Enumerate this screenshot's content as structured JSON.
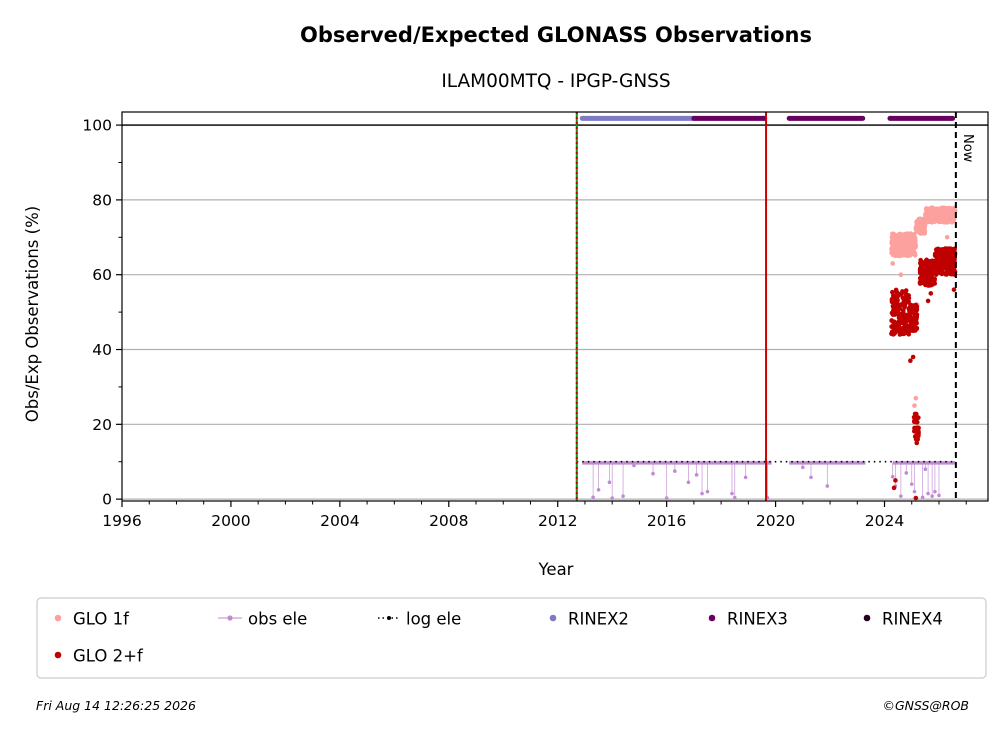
{
  "chart_data": {
    "type": "scatter",
    "title": "Observed/Expected GLONASS Observations",
    "subtitle": "ILAM00MTQ - IPGP-GNSS",
    "xlabel": "Year",
    "ylabel": "Obs/Exp Observations (%)",
    "xlim": [
      1996,
      2027.8
    ],
    "ylim": [
      -0.5,
      103.5
    ],
    "xticks": [
      "1996",
      "2000",
      "2004",
      "2008",
      "2012",
      "2016",
      "2020",
      "2024"
    ],
    "yticks": [
      "0",
      "20",
      "40",
      "60",
      "80",
      "100"
    ],
    "grid": "horizontal",
    "reference_line_y": 100,
    "vertical_lines": [
      {
        "x": 2012.7,
        "color": "#1a8a1a",
        "style": "solid"
      },
      {
        "x": 2012.7,
        "color": "#cc0000",
        "style": "dotted"
      },
      {
        "x": 2019.65,
        "color": "#cc0000",
        "style": "solid"
      },
      {
        "x": 2026.62,
        "color": "#000000",
        "style": "dashed",
        "label": "Now"
      }
    ],
    "rinex_bands": [
      {
        "name": "RINEX2",
        "y": 101.8,
        "x_ranges": [
          [
            2012.9,
            2017.0
          ]
        ]
      },
      {
        "name": "RINEX3",
        "y": 101.8,
        "x_ranges": [
          [
            2017.0,
            2019.6
          ],
          [
            2020.5,
            2023.2
          ],
          [
            2024.2,
            2026.5
          ]
        ]
      }
    ],
    "log_ele": {
      "value": 10,
      "x_range": [
        2012.7,
        2026.62
      ]
    },
    "obs_ele": {
      "baseline": 9.7,
      "x_ranges": [
        [
          2012.9,
          2019.85
        ],
        [
          2020.5,
          2023.3
        ],
        [
          2024.3,
          2026.6
        ]
      ],
      "dips": [
        [
          2013.3,
          0.5
        ],
        [
          2013.5,
          2.5
        ],
        [
          2013.9,
          4.5
        ],
        [
          2014.0,
          0.3
        ],
        [
          2014.4,
          0.8
        ],
        [
          2014.8,
          9.0
        ],
        [
          2015.5,
          6.8
        ],
        [
          2016.0,
          0.3
        ],
        [
          2016.3,
          7.5
        ],
        [
          2016.8,
          4.5
        ],
        [
          2017.1,
          6.5
        ],
        [
          2017.3,
          1.5
        ],
        [
          2017.5,
          2.0
        ],
        [
          2018.4,
          1.5
        ],
        [
          2018.5,
          0.4
        ],
        [
          2018.9,
          5.8
        ],
        [
          2019.7,
          0.4
        ],
        [
          2021.0,
          8.5
        ],
        [
          2021.3,
          5.8
        ],
        [
          2021.9,
          3.5
        ],
        [
          2024.3,
          6.0
        ],
        [
          2024.4,
          3.5
        ],
        [
          2024.6,
          0.8
        ],
        [
          2024.8,
          7.0
        ],
        [
          2025.0,
          4.0
        ],
        [
          2025.1,
          2.0
        ],
        [
          2025.4,
          0.5
        ],
        [
          2025.5,
          8.0
        ],
        [
          2025.6,
          1.5
        ],
        [
          2025.75,
          0.8
        ],
        [
          2025.85,
          2.0
        ],
        [
          2026.0,
          1.0
        ]
      ]
    },
    "glo_1f": {
      "segments": [
        {
          "x_range": [
            2024.25,
            2025.15
          ],
          "y_range": [
            65,
            71
          ]
        },
        {
          "x_range": [
            2025.15,
            2025.5
          ],
          "y_range": [
            71,
            75
          ]
        },
        {
          "x_range": [
            2025.5,
            2026.6
          ],
          "y_range": [
            74,
            78
          ]
        }
      ],
      "outliers": [
        [
          2024.3,
          63
        ],
        [
          2024.6,
          60
        ],
        [
          2025.1,
          25
        ],
        [
          2025.15,
          27
        ],
        [
          2025.2,
          52
        ],
        [
          2025.4,
          62
        ],
        [
          2025.9,
          62
        ],
        [
          2026.3,
          70
        ],
        [
          2026.5,
          60
        ]
      ]
    },
    "glo_2f": {
      "segments": [
        {
          "x_range": [
            2024.25,
            2024.9
          ],
          "y_range": [
            44,
            56
          ]
        },
        {
          "x_range": [
            2024.9,
            2025.2
          ],
          "y_range": [
            45,
            52
          ]
        },
        {
          "x_range": [
            2025.3,
            2025.85
          ],
          "y_range": [
            57,
            64
          ]
        },
        {
          "x_range": [
            2025.85,
            2026.6
          ],
          "y_range": [
            60,
            67
          ]
        }
      ],
      "cluster": {
        "x_range": [
          2025.08,
          2025.25
        ],
        "y_range": [
          15,
          23
        ]
      },
      "outliers": [
        [
          2024.35,
          3
        ],
        [
          2024.4,
          5
        ],
        [
          2024.95,
          37
        ],
        [
          2025.05,
          38
        ],
        [
          2025.15,
          0.3
        ],
        [
          2025.6,
          53
        ],
        [
          2025.7,
          55
        ],
        [
          2026.55,
          56
        ],
        [
          2024.8,
          45
        ]
      ]
    },
    "legend": [
      {
        "name": "GLO 1f",
        "color": "#fca19d",
        "marker": "dot"
      },
      {
        "name": "obs ele",
        "color": "#c18ad2",
        "marker": "line-dot"
      },
      {
        "name": "log ele",
        "color": "#000000",
        "marker": "dotted-line"
      },
      {
        "name": "RINEX2",
        "color": "#7f7bc3",
        "marker": "dot"
      },
      {
        "name": "RINEX3",
        "color": "#6a005f",
        "marker": "dot"
      },
      {
        "name": "RINEX4",
        "color": "#240021",
        "marker": "dot"
      },
      {
        "name": "GLO 2+f",
        "color": "#c00000",
        "marker": "dot"
      }
    ],
    "legend_position": "bottom",
    "now_label": "Now"
  },
  "footer": {
    "timestamp": "Fri Aug 14 12:26:25 2026",
    "credit": "©GNSS@ROB"
  }
}
